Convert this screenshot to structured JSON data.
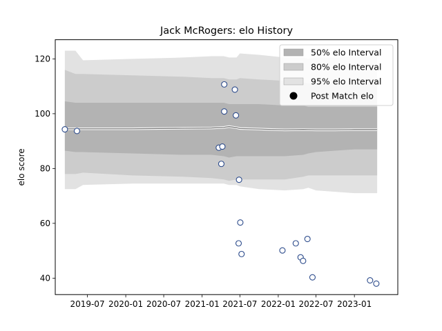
{
  "chart_data": {
    "type": "scatter",
    "title": "Jack McRogers: elo History",
    "xlabel": "",
    "ylabel": "elo score",
    "xlim": [
      "2019-01-28",
      "2023-07-28"
    ],
    "ylim": [
      34,
      127
    ],
    "x_ticks": [
      "2019-07",
      "2020-01",
      "2020-07",
      "2021-01",
      "2021-07",
      "2022-01",
      "2022-07",
      "2023-01"
    ],
    "y_ticks": [
      40,
      60,
      80,
      100,
      120
    ],
    "grid": false,
    "legend_position": "top-right",
    "legend": [
      {
        "label": "50% elo Interval",
        "kind": "band",
        "color": "#b3b3b3"
      },
      {
        "label": "80% elo Interval",
        "kind": "band",
        "color": "#cccccc"
      },
      {
        "label": "95% elo Interval",
        "kind": "band",
        "color": "#e2e2e2"
      },
      {
        "label": "Post Match elo",
        "kind": "marker",
        "color": "#000000"
      }
    ],
    "bands": [
      {
        "name": "95% elo Interval",
        "color": "#e2e2e2",
        "x": [
          "2019-03-15",
          "2019-05-05",
          "2019-06-10",
          "2020-02-01",
          "2020-10-01",
          "2021-02-15",
          "2021-04-15",
          "2021-05-10",
          "2021-06-15",
          "2021-07-01",
          "2021-10-01",
          "2022-02-01",
          "2022-05-01",
          "2022-05-25",
          "2022-07-01",
          "2022-10-01",
          "2023-01-01",
          "2023-04-20"
        ],
        "lower": [
          72.5,
          72.5,
          74,
          74.5,
          74.5,
          74.5,
          74.5,
          74,
          74,
          73.5,
          72.5,
          72,
          72.5,
          73,
          72,
          71.5,
          71,
          71
        ],
        "upper": [
          123,
          123,
          119.5,
          120,
          120.5,
          121,
          121,
          120.5,
          120.5,
          122,
          121.5,
          120.5,
          120.5,
          120,
          120.5,
          120.5,
          121,
          121
        ]
      },
      {
        "name": "80% elo Interval",
        "color": "#cccccc",
        "x": [
          "2019-03-15",
          "2019-05-05",
          "2019-06-10",
          "2020-02-01",
          "2020-10-01",
          "2021-02-15",
          "2021-04-15",
          "2021-05-10",
          "2021-06-15",
          "2021-07-01",
          "2021-10-01",
          "2022-02-01",
          "2022-05-01",
          "2022-05-25",
          "2022-07-01",
          "2022-10-01",
          "2023-01-01",
          "2023-04-20"
        ],
        "lower": [
          78,
          78,
          78.5,
          77.5,
          77,
          76.5,
          76,
          75.5,
          76,
          76,
          76,
          76,
          77,
          77.5,
          77.5,
          77.5,
          77.5,
          77.5
        ],
        "upper": [
          116,
          114.5,
          114.5,
          114,
          113.5,
          113,
          113,
          112.5,
          112.5,
          113,
          112.5,
          112,
          111.5,
          111,
          111,
          111,
          111,
          111
        ]
      },
      {
        "name": "50% elo Interval",
        "color": "#b3b3b3",
        "x": [
          "2019-03-15",
          "2019-05-05",
          "2019-06-10",
          "2020-02-01",
          "2020-10-01",
          "2021-02-15",
          "2021-04-15",
          "2021-05-10",
          "2021-06-15",
          "2021-07-01",
          "2021-10-01",
          "2022-02-01",
          "2022-05-01",
          "2022-05-25",
          "2022-07-01",
          "2022-10-01",
          "2023-01-01",
          "2023-04-20"
        ],
        "lower": [
          86.5,
          86,
          86,
          85.5,
          85,
          85,
          84.5,
          84,
          84.5,
          84.5,
          84.5,
          84.5,
          85,
          85.5,
          86,
          86.5,
          87,
          87
        ],
        "upper": [
          104.5,
          104,
          104,
          104,
          104,
          104,
          104,
          103.5,
          103.5,
          103.5,
          103.5,
          103,
          103,
          102.5,
          102.5,
          102.5,
          102.5,
          102.5
        ]
      }
    ],
    "center_line": {
      "x": [
        "2019-03-15",
        "2019-06-10",
        "2020-02-01",
        "2020-10-01",
        "2021-02-15",
        "2021-04-15",
        "2021-05-10",
        "2021-06-15",
        "2021-07-01",
        "2021-10-01",
        "2022-02-01",
        "2022-05-01",
        "2022-07-01",
        "2022-10-01",
        "2023-01-01",
        "2023-04-20"
      ],
      "y": [
        94.5,
        94.5,
        94.5,
        94.7,
        94.8,
        95,
        95.3,
        94.9,
        94.6,
        94.4,
        94.1,
        94.2,
        94.1,
        94.1,
        94.2,
        94.2
      ]
    },
    "points": [
      {
        "x": "2019-03-15",
        "y": 94.3
      },
      {
        "x": "2019-05-12",
        "y": 93.7
      },
      {
        "x": "2021-03-22",
        "y": 87.6
      },
      {
        "x": "2021-04-03",
        "y": 81.7
      },
      {
        "x": "2021-04-08",
        "y": 88.0
      },
      {
        "x": "2021-04-17",
        "y": 110.7
      },
      {
        "x": "2021-04-17",
        "y": 100.8
      },
      {
        "x": "2021-06-07",
        "y": 108.8
      },
      {
        "x": "2021-06-12",
        "y": 99.4
      },
      {
        "x": "2021-06-27",
        "y": 75.9
      },
      {
        "x": "2021-07-03",
        "y": 60.3
      },
      {
        "x": "2021-06-25",
        "y": 52.7
      },
      {
        "x": "2021-07-09",
        "y": 48.8
      },
      {
        "x": "2022-01-21",
        "y": 50.1
      },
      {
        "x": "2022-03-26",
        "y": 52.7
      },
      {
        "x": "2022-04-18",
        "y": 47.6
      },
      {
        "x": "2022-04-30",
        "y": 46.3
      },
      {
        "x": "2022-05-21",
        "y": 54.3
      },
      {
        "x": "2022-06-14",
        "y": 40.3
      },
      {
        "x": "2023-03-17",
        "y": 39.2
      },
      {
        "x": "2023-04-16",
        "y": 38.0
      }
    ]
  }
}
